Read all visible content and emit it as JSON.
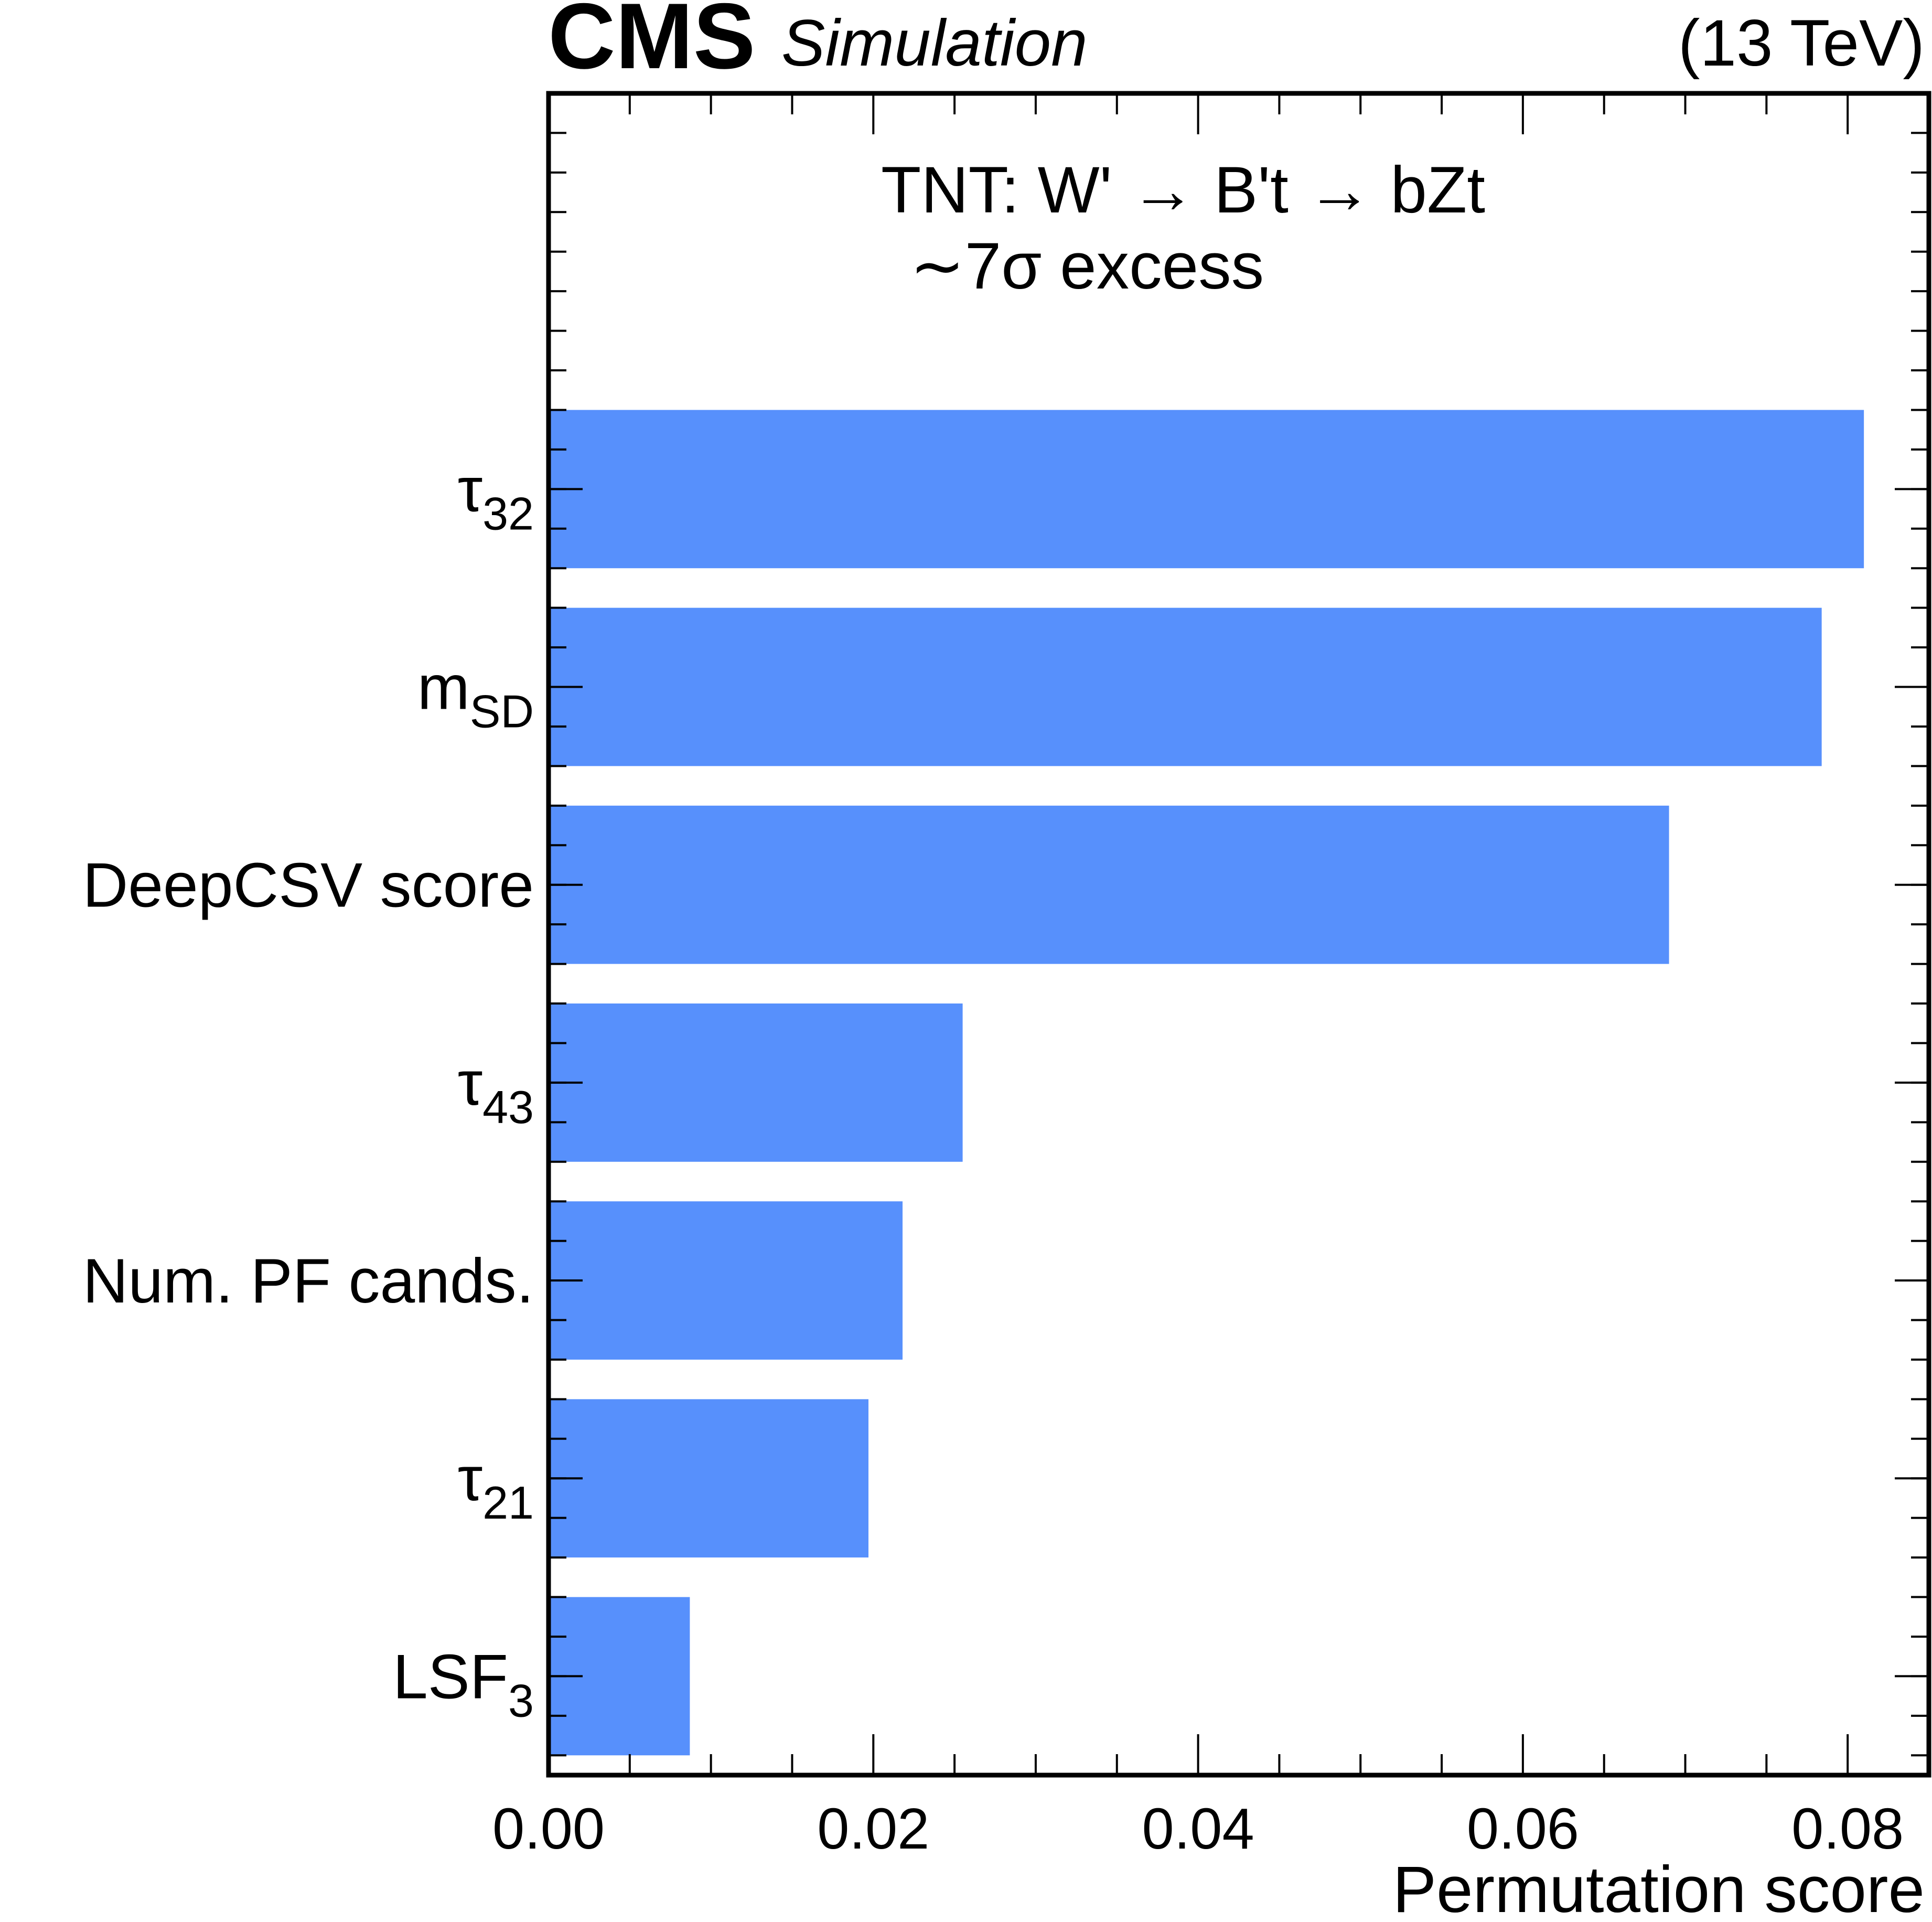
{
  "header": {
    "experiment": "CMS",
    "status": "Simulation",
    "energy": "(13 TeV)"
  },
  "annotation": {
    "line1": "TNT: W' →  B't →  bZt",
    "line2": "∼7σ excess"
  },
  "chart_data": {
    "type": "bar",
    "orientation": "horizontal",
    "title": "",
    "xlabel": "Permutation score",
    "ylabel": "",
    "xlim": [
      0.0,
      0.085
    ],
    "xticks": [
      "0.00",
      "0.02",
      "0.04",
      "0.06",
      "0.08"
    ],
    "grid": false,
    "color": "#5790fc",
    "categories": [
      {
        "base": "τ",
        "sub": "32"
      },
      {
        "base": "m",
        "sub": "SD"
      },
      {
        "base": "DeepCSV score",
        "sub": ""
      },
      {
        "base": "τ",
        "sub": "43"
      },
      {
        "base": "Num. PF cands.",
        "sub": ""
      },
      {
        "base": "τ",
        "sub": "21"
      },
      {
        "base": "LSF",
        "sub": "3"
      }
    ],
    "values": [
      0.081,
      0.0784,
      0.069,
      0.0255,
      0.0218,
      0.0197,
      0.0087
    ]
  }
}
